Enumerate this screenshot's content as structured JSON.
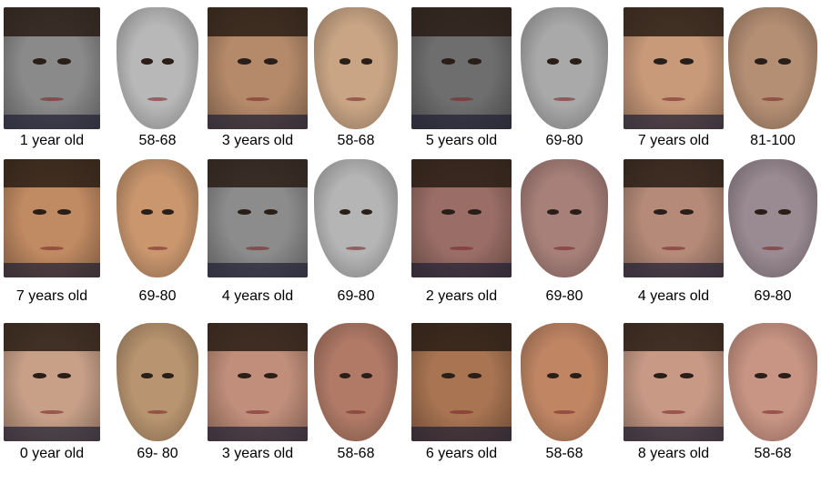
{
  "figure": {
    "rows": [
      [
        {
          "label": "1 year old",
          "kind": "photo",
          "tint": "#8a8a8a"
        },
        {
          "label": "58-68",
          "kind": "face",
          "tint": "#b8b8b8"
        },
        {
          "label": "3 years old",
          "kind": "photo",
          "tint": "#b58a6a"
        },
        {
          "label": "58-68",
          "kind": "face",
          "tint": "#c9a585"
        },
        {
          "label": "5 years old",
          "kind": "photo",
          "tint": "#6e6e6e"
        },
        {
          "label": "69-80",
          "kind": "face",
          "tint": "#a9a9a9"
        },
        {
          "label": "7 years old",
          "kind": "photo",
          "tint": "#c99a7a"
        },
        {
          "label": "81-100",
          "kind": "face",
          "tint": "#b58f74"
        }
      ],
      [
        {
          "label": "7 years old",
          "kind": "photo",
          "tint": "#c08a62"
        },
        {
          "label": "69-80",
          "kind": "face",
          "tint": "#c9966e"
        },
        {
          "label": "4 years old",
          "kind": "photo",
          "tint": "#8c8c8c"
        },
        {
          "label": "69-80",
          "kind": "face",
          "tint": "#b5b5b5"
        },
        {
          "label": "2 years old",
          "kind": "photo",
          "tint": "#9a6e66"
        },
        {
          "label": "69-80",
          "kind": "face",
          "tint": "#a8807a"
        },
        {
          "label": "4 years old",
          "kind": "photo",
          "tint": "#b58a78"
        },
        {
          "label": "69-80",
          "kind": "face",
          "tint": "#9a8a92"
        }
      ],
      [
        {
          "label": "0 year old",
          "kind": "photo",
          "tint": "#c8a088"
        },
        {
          "label": "69- 80",
          "kind": "face",
          "tint": "#b89470"
        },
        {
          "label": "3 years old",
          "kind": "photo",
          "tint": "#c08e7a"
        },
        {
          "label": "58-68",
          "kind": "face",
          "tint": "#b07a66"
        },
        {
          "label": "6 years old",
          "kind": "photo",
          "tint": "#a87452"
        },
        {
          "label": "58-68",
          "kind": "face",
          "tint": "#c08664"
        },
        {
          "label": "8 years old",
          "kind": "photo",
          "tint": "#c89a86"
        },
        {
          "label": "58-68",
          "kind": "face",
          "tint": "#c89484"
        }
      ]
    ]
  }
}
